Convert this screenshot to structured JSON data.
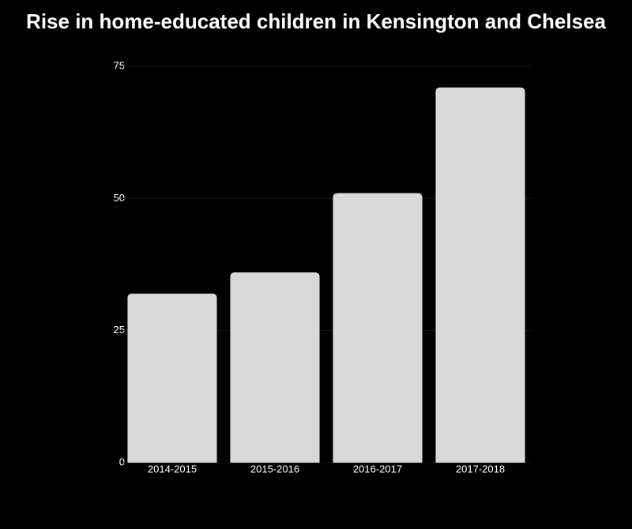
{
  "chart_data": {
    "type": "bar",
    "title": "Rise in home-educated children in Kensington and Chelsea",
    "categories": [
      "2014-2015",
      "2015-2016",
      "2016-2017",
      "2017-2018"
    ],
    "values": [
      32,
      36,
      51,
      71
    ],
    "color": "#d9d9d9",
    "ylim": [
      0,
      75
    ],
    "yticks": [
      0,
      25,
      50,
      75
    ],
    "grid": true
  }
}
